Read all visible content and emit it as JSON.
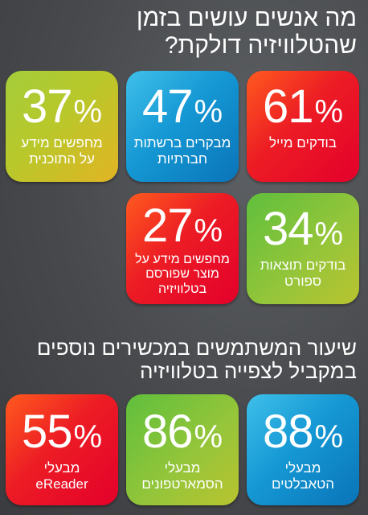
{
  "section1": {
    "title_lines": [
      "מה אנשים עושים בזמן",
      "שהטלוויזיה דולקת?"
    ],
    "tiles": [
      {
        "percent": "61",
        "label_lines": [
          "בודקים מייל"
        ],
        "color": "#ec1c24"
      },
      {
        "percent": "47",
        "label_lines": [
          "מבקרים ברשתות",
          "חברתיות"
        ],
        "color": "#1598d4"
      },
      {
        "percent": "37",
        "label_lines": [
          "מחפשים מידע",
          "על התוכנית"
        ],
        "color": "#b8c82a"
      },
      {
        "percent": "34",
        "label_lines": [
          "בודקים תוצאות",
          "ספורט"
        ],
        "color": "#93c53a"
      },
      {
        "percent": "27",
        "label_lines": [
          "מחפשים מידע על",
          "מוצר שפורסם",
          "בטלוויזיה"
        ],
        "color": "#ec1c24"
      }
    ]
  },
  "section2": {
    "title_lines": [
      "שיעור המשתמשים במכשירים נוספים",
      "במקביל לצפייה בטלוויזיה"
    ],
    "tiles": [
      {
        "percent": "88",
        "label_lines": [
          "מבעלי",
          "הטאבלטים"
        ],
        "color": "#1598d4"
      },
      {
        "percent": "86",
        "label_lines": [
          "מבעלי",
          "הסמארטפונים"
        ],
        "color": "#93c53a"
      },
      {
        "percent": "55",
        "label_lines": [
          "מבעלי",
          "eReader"
        ],
        "color": "#ec1c24"
      }
    ]
  },
  "percent_sign": "%"
}
